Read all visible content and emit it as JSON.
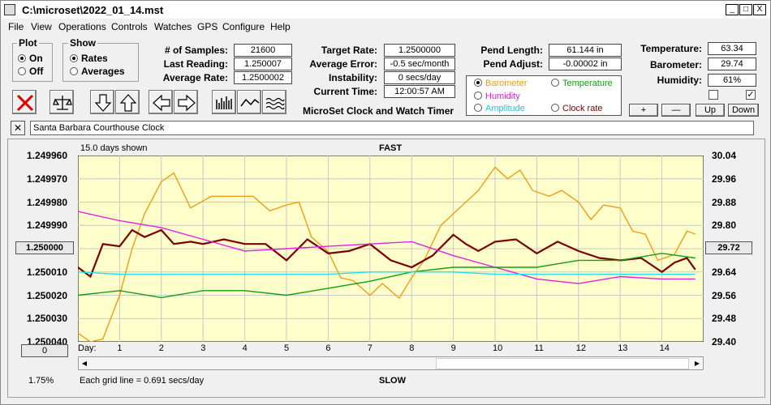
{
  "window": {
    "title": "C:\\microset\\2022_01_14.mst",
    "min": "_",
    "max": "□",
    "close": "X"
  },
  "menu": [
    "File",
    "View",
    "Operations",
    "Controls",
    "Watches",
    "GPS",
    "Configure",
    "Help"
  ],
  "plot_group": {
    "title": "Plot",
    "on": "On",
    "off": "Off",
    "selected": "On"
  },
  "show_group": {
    "title": "Show",
    "rates": "Rates",
    "averages": "Averages",
    "selected": "Rates"
  },
  "stats_left": {
    "samples_label": "# of Samples:",
    "samples": "21600",
    "last_label": "Last Reading:",
    "last": "1.250007",
    "avg_label": "Average Rate:",
    "avg": "1.2500002"
  },
  "stats_mid": {
    "target_label": "Target Rate:",
    "target": "1.2500000",
    "avgerr_label": "Average Error:",
    "avgerr": "-0.5 sec/month",
    "inst_label": "Instability:",
    "inst": "0 secs/day",
    "time_label": "Current Time:",
    "time": "12:00:57 AM",
    "caption": "MicroSet Clock and Watch Timer"
  },
  "pend": {
    "length_label": "Pend Length:",
    "length": "61.144 in",
    "adjust_label": "Pend Adjust:",
    "adjust": "-0.00002 in"
  },
  "env": {
    "temp_label": "Temperature:",
    "temp": "63.34",
    "baro_label": "Barometer:",
    "baro": "29.74",
    "hum_label": "Humidity:",
    "hum": "61%"
  },
  "chooser": {
    "barometer": "Barometer",
    "temperature": "Temperature",
    "humidity": "Humidity",
    "amplitude": "Amplitude",
    "clockrate": "Clock rate",
    "selected": "Barometer"
  },
  "scale_buttons": {
    "plus": "+",
    "minus": "—",
    "up": "Up",
    "down": "Down"
  },
  "clock_name": "Santa Barbara Courthouse Clock",
  "chart_header": {
    "days_shown": "15.0 days shown",
    "fast": "FAST",
    "slow": "SLOW",
    "grid_note": "Each grid line = 0.691 secs/day"
  },
  "left_button": "1.250000",
  "right_button": "29.72",
  "bottom_left_button": "0",
  "percent": "1.75%",
  "day_label": "Day:",
  "colors": {
    "plot_bg": "#ffffcc",
    "barometer": "#f39c12",
    "rate": "#7a0000",
    "humidity": "#e020e0",
    "temperature": "#10a010",
    "amplitude": "#20e0f0"
  },
  "chart_data": {
    "type": "line",
    "x_unit": "day",
    "x_range": [
      0,
      15
    ],
    "x_ticks": [
      "1",
      "2",
      "3",
      "4",
      "5",
      "6",
      "7",
      "8",
      "9",
      "10",
      "11",
      "12",
      "13",
      "14"
    ],
    "y_left": {
      "ticks": [
        "1.249960",
        "1.249970",
        "1.249980",
        "1.249990",
        "1.250000",
        "1.250010",
        "1.250020",
        "1.250030",
        "1.250040"
      ],
      "range": [
        1.24996,
        1.25004
      ],
      "inverted": true
    },
    "y_right": {
      "ticks": [
        "30.04",
        "29.96",
        "29.88",
        "29.80",
        "29.72",
        "29.64",
        "29.56",
        "29.48",
        "29.40"
      ],
      "range": [
        29.4,
        30.04
      ]
    },
    "series": [
      {
        "name": "Barometer",
        "axis": "right",
        "color": "#f39c12",
        "x": [
          0,
          0.3,
          0.6,
          1.0,
          1.3,
          1.6,
          2.0,
          2.3,
          2.7,
          3.2,
          3.7,
          4.2,
          4.6,
          5.0,
          5.3,
          5.6,
          6.0,
          6.3,
          6.6,
          7.0,
          7.3,
          7.7,
          8.0,
          8.3,
          8.7,
          9.0,
          9.3,
          9.6,
          10.0,
          10.3,
          10.6,
          10.9,
          11.3,
          11.6,
          12.0,
          12.3,
          12.6,
          13.0,
          13.3,
          13.6,
          13.9,
          14.3,
          14.6,
          14.8
        ],
        "y": [
          29.43,
          29.4,
          29.41,
          29.56,
          29.72,
          29.84,
          29.95,
          29.98,
          29.86,
          29.9,
          29.9,
          29.9,
          29.85,
          29.87,
          29.88,
          29.76,
          29.71,
          29.62,
          29.61,
          29.56,
          29.6,
          29.55,
          29.62,
          29.68,
          29.8,
          29.84,
          29.88,
          29.92,
          30.0,
          29.96,
          29.99,
          29.92,
          29.9,
          29.92,
          29.88,
          29.82,
          29.87,
          29.86,
          29.78,
          29.77,
          29.68,
          29.7,
          29.78,
          29.77
        ]
      },
      {
        "name": "Clock rate",
        "axis": "left",
        "color": "#7a0000",
        "x": [
          0,
          0.3,
          0.6,
          1.0,
          1.3,
          1.6,
          2.0,
          2.3,
          2.7,
          3.0,
          3.5,
          4.0,
          4.5,
          5.0,
          5.5,
          6.0,
          6.5,
          7.0,
          7.5,
          8.0,
          8.5,
          9.0,
          9.3,
          9.6,
          10.0,
          10.5,
          11.0,
          11.5,
          12.0,
          12.5,
          13.0,
          13.5,
          14.0,
          14.3,
          14.6,
          14.8
        ],
        "y": [
          1.250008,
          1.250012,
          1.249998,
          1.249999,
          1.249992,
          1.249995,
          1.249992,
          1.249998,
          1.249997,
          1.249998,
          1.249996,
          1.249998,
          1.249998,
          1.250005,
          1.249996,
          1.250002,
          1.250001,
          1.249998,
          1.250005,
          1.250008,
          1.250003,
          1.249994,
          1.249998,
          1.250001,
          1.249997,
          1.249996,
          1.250002,
          1.249997,
          1.250001,
          1.250004,
          1.250005,
          1.250004,
          1.25001,
          1.250006,
          1.250004,
          1.250009
        ]
      },
      {
        "name": "Humidity",
        "axis": "left",
        "color": "#e020e0",
        "x": [
          0,
          1,
          2,
          3,
          4,
          5,
          6,
          7,
          8,
          9,
          10,
          11,
          12,
          13,
          14,
          14.8
        ],
        "y": [
          1.249984,
          1.249988,
          1.249991,
          1.249996,
          1.250001,
          1.25,
          1.249999,
          1.249998,
          1.249997,
          1.250003,
          1.250008,
          1.250013,
          1.250015,
          1.250012,
          1.250013,
          1.250013
        ]
      },
      {
        "name": "Temperature",
        "axis": "left",
        "color": "#10a010",
        "x": [
          0,
          1,
          2,
          3,
          4,
          5,
          6,
          7,
          8,
          9,
          10,
          11,
          12,
          13,
          14,
          14.8
        ],
        "y": [
          1.25002,
          1.250018,
          1.250021,
          1.250018,
          1.250018,
          1.25002,
          1.250017,
          1.250014,
          1.25001,
          1.250008,
          1.250008,
          1.250008,
          1.250005,
          1.250005,
          1.250002,
          1.250004
        ]
      },
      {
        "name": "Amplitude",
        "axis": "left",
        "color": "#20e0f0",
        "x": [
          0,
          1,
          2,
          3,
          4,
          5,
          6,
          7,
          8,
          9,
          10,
          11,
          12,
          13,
          14,
          14.8
        ],
        "y": [
          1.25001,
          1.250011,
          1.250011,
          1.250011,
          1.250011,
          1.250011,
          1.250011,
          1.25001,
          1.25001,
          1.25001,
          1.250011,
          1.250011,
          1.250011,
          1.250011,
          1.250011,
          1.250011
        ]
      }
    ],
    "grid": true
  }
}
